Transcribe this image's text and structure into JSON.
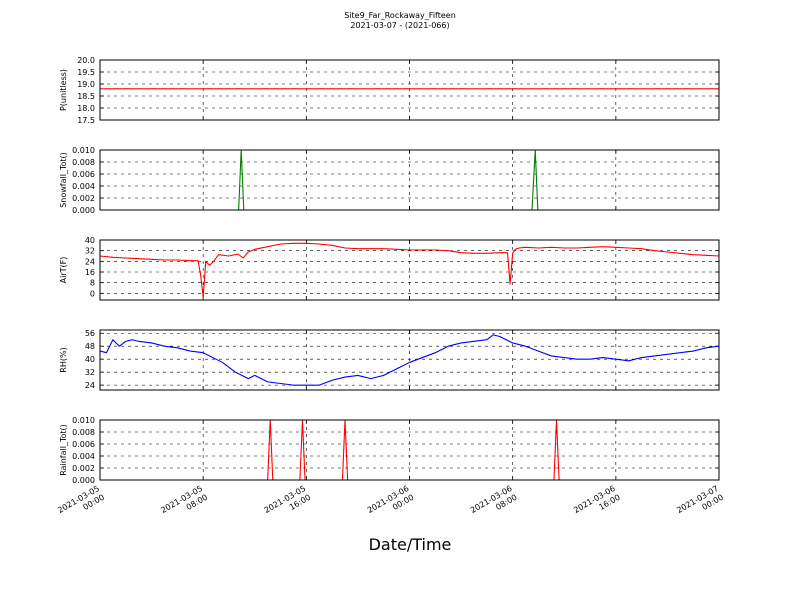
{
  "title": "Site9_Far_Rockaway_Fifteen",
  "subtitle": "2021-03-07 - (2021-066)",
  "xlabel": "Date/Time",
  "x_tick_labels": [
    [
      "2021-03-05",
      "00:00"
    ],
    [
      "2021-03-05",
      "08:00"
    ],
    [
      "2021-03-05",
      "16:00"
    ],
    [
      "2021-03-06",
      "00:00"
    ],
    [
      "2021-03-06",
      "08:00"
    ],
    [
      "2021-03-06",
      "16:00"
    ],
    [
      "2021-03-07",
      "00:00"
    ]
  ],
  "chart_data": [
    {
      "type": "line",
      "ylabel": "P(unitless)",
      "ylim": [
        17.5,
        20.0
      ],
      "yticks": [
        17.5,
        18.0,
        18.5,
        19.0,
        19.5,
        20.0
      ],
      "ytick_labels": [
        "17.5",
        "18.0",
        "18.5",
        "19.0",
        "19.5",
        "20.0"
      ],
      "color": "#ff0000",
      "grid": true,
      "xlim": [
        0,
        48
      ],
      "series": [
        {
          "x": [
            0,
            48
          ],
          "values": [
            18.8,
            18.8
          ]
        }
      ]
    },
    {
      "type": "line",
      "ylabel": "Snowfall_Tot()",
      "ylim": [
        0.0,
        0.01
      ],
      "yticks": [
        0.0,
        0.002,
        0.004,
        0.006,
        0.008,
        0.01
      ],
      "ytick_labels": [
        "0.000",
        "0.002",
        "0.004",
        "0.006",
        "0.008",
        "0.010"
      ],
      "color": "#008000",
      "grid": true,
      "xlim": [
        0,
        48
      ],
      "series": [
        {
          "x": [
            0,
            10.75,
            10.95,
            11.15,
            33.5,
            33.75,
            33.95,
            48
          ],
          "values": [
            0,
            0,
            0.01,
            0,
            0,
            0.01,
            0,
            0
          ]
        }
      ]
    },
    {
      "type": "line",
      "ylabel": "AirT(F)",
      "ylim": [
        -5,
        40
      ],
      "yticks": [
        0,
        8,
        16,
        24,
        32,
        40
      ],
      "ytick_labels": [
        "0",
        "8",
        "16",
        "24",
        "32",
        "40"
      ],
      "color": "#ff0000",
      "grid": true,
      "xlim": [
        0,
        48
      ],
      "series": [
        {
          "x": [
            0,
            1,
            2,
            3,
            4,
            5,
            6,
            7,
            7.6,
            7.8,
            8.0,
            8.2,
            8.5,
            8.8,
            9.2,
            10,
            10.7,
            11.1,
            11.5,
            12,
            13,
            14,
            15,
            16,
            17,
            18,
            19,
            20,
            21,
            22,
            23,
            24,
            25,
            26,
            27,
            28,
            29,
            30,
            31,
            31.6,
            31.8,
            32.0,
            32.2,
            32.5,
            33,
            34,
            35,
            36,
            37,
            38,
            39,
            40,
            41,
            42,
            43,
            44,
            45,
            46,
            47,
            48
          ],
          "values": [
            28,
            27,
            26.5,
            26,
            25.5,
            25,
            25,
            24.5,
            24.5,
            14,
            -3,
            24,
            21,
            24,
            29,
            28,
            29.5,
            26.5,
            31,
            33,
            35,
            37,
            37.5,
            37.5,
            37,
            36,
            34,
            33.5,
            33.5,
            33.5,
            33,
            32.5,
            32.5,
            32.5,
            32,
            30.5,
            30,
            30,
            30.5,
            30.5,
            7,
            30,
            33,
            34,
            34.5,
            34,
            34.5,
            34,
            34,
            34.5,
            35,
            34.5,
            34,
            33.5,
            32,
            31,
            30,
            29,
            28.5,
            28
          ]
        }
      ]
    },
    {
      "type": "line",
      "ylabel": "RH(%)",
      "ylim": [
        21,
        58
      ],
      "yticks": [
        24,
        32,
        40,
        48,
        56
      ],
      "ytick_labels": [
        "24",
        "32",
        "40",
        "48",
        "56"
      ],
      "color": "#0000ff",
      "grid": true,
      "xlim": [
        0,
        48
      ],
      "series": [
        {
          "x": [
            0,
            0.5,
            1,
            1.5,
            2,
            2.5,
            3,
            4,
            5,
            6,
            7,
            8,
            9,
            9.5,
            10,
            10.5,
            11,
            11.5,
            12,
            13,
            14,
            15,
            16,
            17,
            18,
            19,
            20,
            21,
            22,
            23,
            24,
            25,
            26,
            27,
            28,
            29,
            30,
            30.5,
            31,
            31.5,
            32,
            33,
            34,
            35,
            36,
            37,
            38,
            39,
            40,
            41,
            42,
            43,
            44,
            45,
            46,
            47,
            48
          ],
          "values": [
            45,
            44,
            52,
            48,
            51,
            52,
            51,
            50,
            48,
            47,
            45,
            44,
            40,
            38,
            35,
            32,
            30,
            28,
            30,
            26,
            25,
            24,
            24,
            24,
            27,
            29,
            30,
            28,
            30,
            34,
            38,
            41,
            44,
            48,
            50,
            51,
            52,
            55,
            54,
            52,
            50,
            48,
            45,
            42,
            41,
            40,
            40,
            41,
            40,
            39,
            41,
            42,
            43,
            44,
            45,
            47,
            48
          ]
        }
      ]
    },
    {
      "type": "line",
      "ylabel": "Rainfall_Tot()",
      "ylim": [
        0.0,
        0.01
      ],
      "yticks": [
        0.0,
        0.002,
        0.004,
        0.006,
        0.008,
        0.01
      ],
      "ytick_labels": [
        "0.000",
        "0.002",
        "0.004",
        "0.006",
        "0.008",
        "0.010"
      ],
      "color": "#ff0000",
      "grid": true,
      "xlim": [
        0,
        48
      ],
      "series": [
        {
          "x": [
            0,
            13.0,
            13.2,
            13.4,
            15.5,
            15.7,
            15.9,
            18.8,
            19.0,
            19.2,
            35.2,
            35.4,
            35.6,
            48
          ],
          "values": [
            0,
            0,
            0.01,
            0,
            0,
            0.01,
            0,
            0,
            0.01,
            0,
            0,
            0.01,
            0,
            0
          ]
        }
      ]
    }
  ]
}
